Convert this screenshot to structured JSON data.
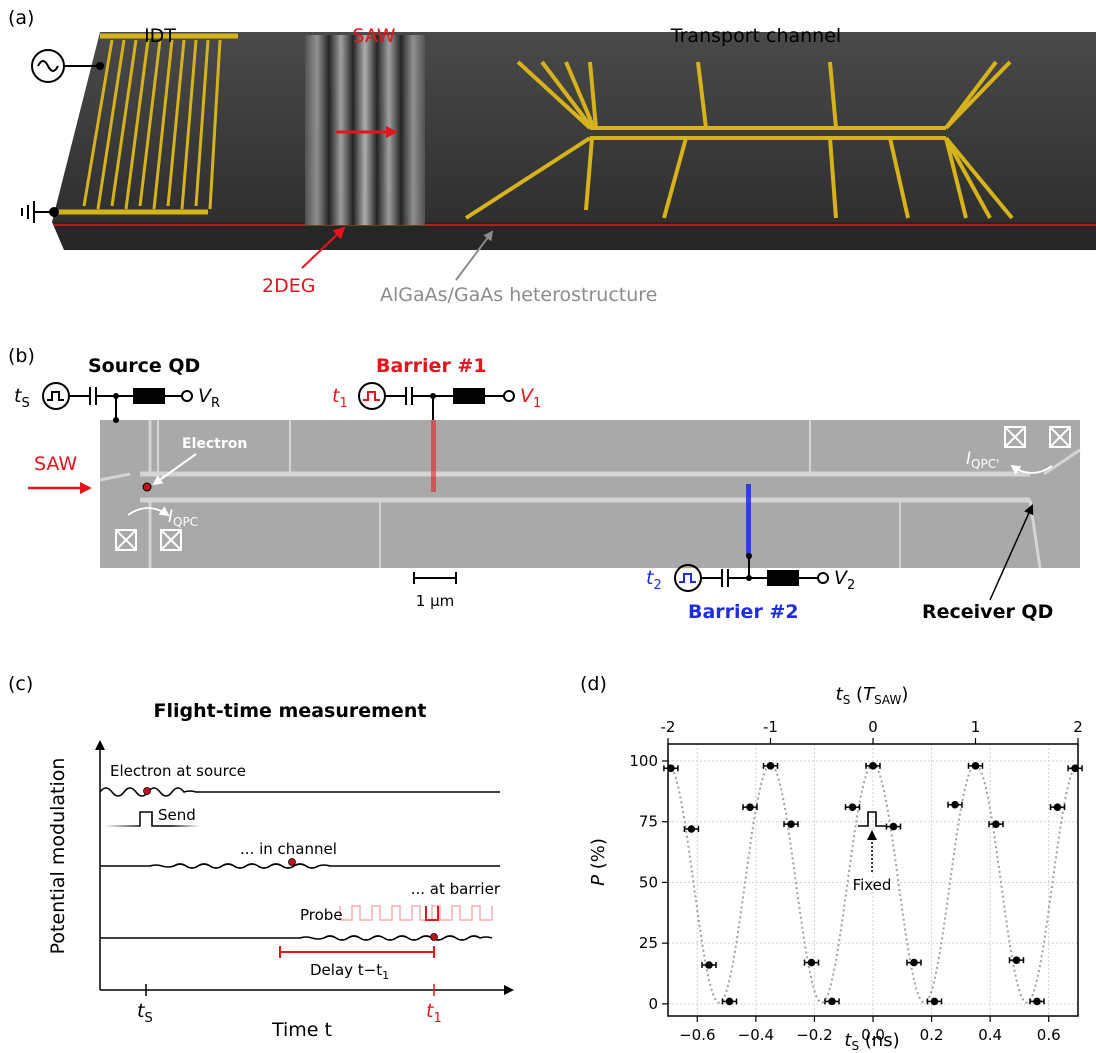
{
  "colors": {
    "red": "#e8141b",
    "blue": "#1f2de0",
    "gray_label": "#8c8c8c",
    "gold": "#d6b31a",
    "slab": "#3b3b3b",
    "sem": "#a9a9a9"
  },
  "panel_a": {
    "label": "(a)",
    "idt": "IDT",
    "saw": "SAW",
    "transport": "Transport channel",
    "twodeg": "2DEG",
    "hetero": "AlGaAs/GaAs heterostructure"
  },
  "panel_b": {
    "label": "(b)",
    "source_qd": "Source QD",
    "barrier1": "Barrier #1",
    "barrier2": "Barrier #2",
    "receiver_qd": "Receiver QD",
    "saw": "SAW",
    "electron": "Electron",
    "scale": "1 µm",
    "ts": "t",
    "ts_sub": "S",
    "vr": "V",
    "vr_sub": "R",
    "t1": "t",
    "t1_sub": "1",
    "v1": "V",
    "v1_sub": "1",
    "t2": "t",
    "t2_sub": "2",
    "v2": "V",
    "v2_sub": "2",
    "iqpc": "I",
    "iqpc_sub": "QPC",
    "iqpc2": "I",
    "iqpc2_sub": "QPC'"
  },
  "panel_c": {
    "label": "(c)",
    "title": "Flight-time measurement",
    "ylabel": "Potential modulation",
    "xlabel": "Time t",
    "at_source": "Electron at source",
    "send": "Send",
    "in_channel": "... in channel",
    "at_barrier": "... at barrier",
    "probe": "Probe",
    "delay": "Delay t−t",
    "delay_sub": "1",
    "tick_ts": "t",
    "tick_ts_sub": "S",
    "tick_t1": "t",
    "tick_t1_sub": "1"
  },
  "panel_d": {
    "label": "(d)",
    "fixed": "Fixed"
  },
  "chart_data": {
    "type": "scatter",
    "xlabel": "t_S (ns)",
    "ylabel": "P (%)",
    "top_xlabel": "t_S (T_SAW)",
    "xlim": [
      -0.7,
      0.7
    ],
    "ylim": [
      -5,
      107
    ],
    "xticks": [
      -0.6,
      -0.4,
      -0.2,
      0.0,
      0.2,
      0.4,
      0.6
    ],
    "xtick_labels": [
      "−0.6",
      "−0.4",
      "−0.2",
      "0.0",
      "0.2",
      "0.4",
      "0.6"
    ],
    "yticks": [
      0,
      25,
      50,
      75,
      100
    ],
    "ytick_labels": [
      "0",
      "25",
      "50",
      "75",
      "100"
    ],
    "top_ticks": [
      -2,
      -1,
      0,
      1,
      2
    ],
    "top_tick_labels": [
      "-2",
      "-1",
      "0",
      "1",
      "2"
    ],
    "grid": true,
    "points": {
      "x": [
        -0.69,
        -0.62,
        -0.56,
        -0.49,
        -0.42,
        -0.35,
        -0.28,
        -0.21,
        -0.14,
        -0.07,
        0.0,
        0.07,
        0.14,
        0.21,
        0.28,
        0.35,
        0.42,
        0.49,
        0.56,
        0.63,
        0.69
      ],
      "y": [
        97,
        72,
        16,
        1,
        81,
        98,
        74,
        17,
        1,
        81,
        98,
        73,
        17,
        1,
        82,
        98,
        74,
        18,
        1,
        81,
        97
      ]
    },
    "fit": "dotted sinusoid"
  }
}
